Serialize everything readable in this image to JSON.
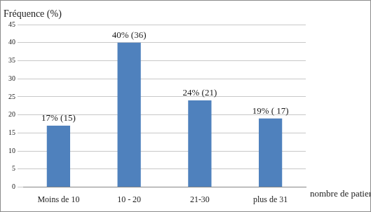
{
  "chart_data": {
    "type": "bar",
    "y_label": "Fréquence (%)",
    "x_label": "nombre de patients",
    "categories": [
      "Moins de 10",
      "10 - 20",
      "21-30",
      "plus de 31"
    ],
    "values": [
      17,
      40,
      24,
      19
    ],
    "value_labels": [
      "17% (15)",
      "40% (36)",
      "24% (21)",
      "19% ( 17)"
    ],
    "data_labels": true,
    "color": "#4f81bd",
    "ylim": [
      0,
      45
    ],
    "yticks": [
      0,
      5,
      10,
      15,
      20,
      25,
      30,
      35,
      40,
      45
    ],
    "grid": true
  }
}
